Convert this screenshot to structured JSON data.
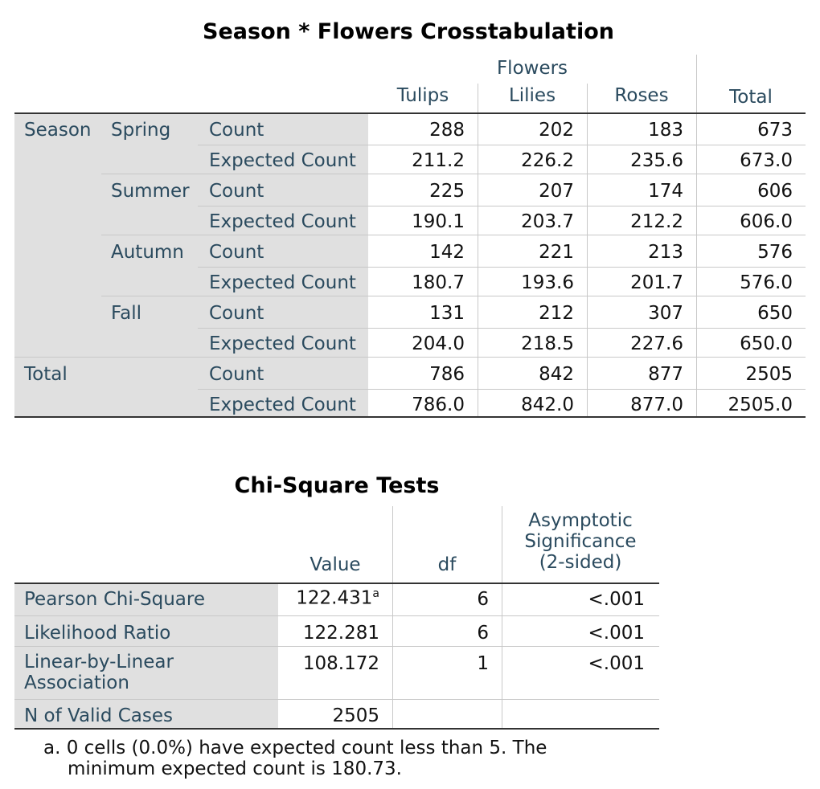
{
  "crosstab": {
    "title": "Season * Flowers Crosstabulation",
    "col_group_label": "Flowers",
    "columns": [
      "Tulips",
      "Lilies",
      "Roses",
      "Total"
    ],
    "row_group_label": "Season",
    "total_label": "Total",
    "stat_labels": [
      "Count",
      "Expected Count"
    ],
    "rows": [
      {
        "season": "Spring",
        "count": [
          "288",
          "202",
          "183",
          "673"
        ],
        "expected": [
          "211.2",
          "226.2",
          "235.6",
          "673.0"
        ]
      },
      {
        "season": "Summer",
        "count": [
          "225",
          "207",
          "174",
          "606"
        ],
        "expected": [
          "190.1",
          "203.7",
          "212.2",
          "606.0"
        ]
      },
      {
        "season": "Autumn",
        "count": [
          "142",
          "221",
          "213",
          "576"
        ],
        "expected": [
          "180.7",
          "193.6",
          "201.7",
          "576.0"
        ]
      },
      {
        "season": "Fall",
        "count": [
          "131",
          "212",
          "307",
          "650"
        ],
        "expected": [
          "204.0",
          "218.5",
          "227.6",
          "650.0"
        ]
      }
    ],
    "total_row": {
      "count": [
        "786",
        "842",
        "877",
        "2505"
      ],
      "expected": [
        "786.0",
        "842.0",
        "877.0",
        "2505.0"
      ]
    }
  },
  "chisq": {
    "title": "Chi-Square Tests",
    "headers": {
      "value": "Value",
      "df": "df",
      "sig_line1": "Asymptotic",
      "sig_line2": "Significance",
      "sig_line3": "(2-sided)"
    },
    "rows": [
      {
        "label": "Pearson Chi-Square",
        "value": "122.431",
        "sup": "a",
        "df": "6",
        "sig": "<.001"
      },
      {
        "label": "Likelihood Ratio",
        "value": "122.281",
        "df": "6",
        "sig": "<.001"
      },
      {
        "label_line1": "Linear-by-Linear",
        "label_line2": "Association",
        "value": "108.172",
        "df": "1",
        "sig": "<.001"
      },
      {
        "label": "N of Valid Cases",
        "value": "2505"
      }
    ],
    "footnote_line1": "a. 0 cells (0.0%) have expected count less than 5. The",
    "footnote_line2": "minimum expected count is 180.73."
  }
}
